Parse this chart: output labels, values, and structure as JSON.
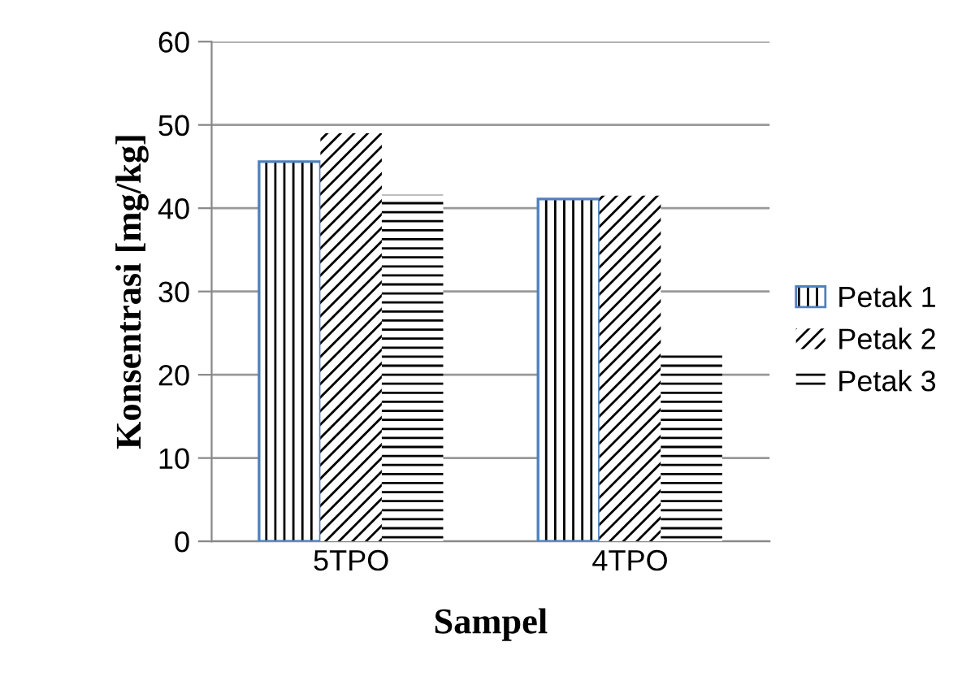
{
  "chart_data": {
    "type": "bar",
    "xlabel": "Sampel",
    "ylabel": "Konsentrasi [mg/kg]",
    "categories": [
      "5TPO",
      "4TPO"
    ],
    "series": [
      {
        "name": "Petak 1",
        "color": "#4f81bd",
        "values": [
          45.6,
          41.1
        ]
      },
      {
        "name": "Petak 2",
        "color": "#000000",
        "values": [
          49.0,
          41.5
        ]
      },
      {
        "name": "Petak 3",
        "color": "#000000",
        "values": [
          41.6,
          23.0
        ]
      }
    ],
    "ylim": [
      0,
      60
    ],
    "yticks": [
      0,
      10,
      20,
      30,
      40,
      50,
      60
    ],
    "grid": "y",
    "legend": "right"
  }
}
